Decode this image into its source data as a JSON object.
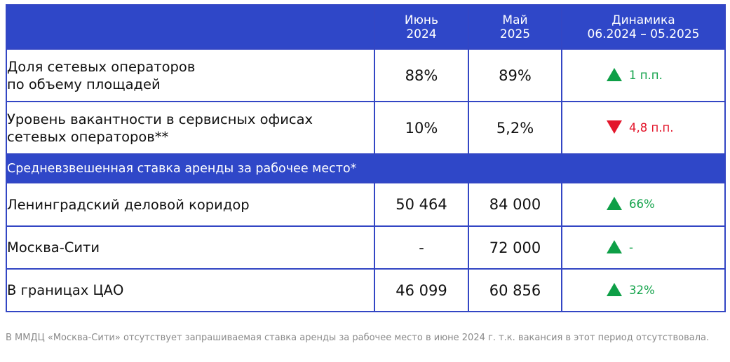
{
  "header": {
    "col1": "",
    "col2": {
      "line1": "Июнь",
      "line2": "2024"
    },
    "col3": {
      "line1": "Май",
      "line2": "2025"
    },
    "col4": {
      "line1": "Динамика",
      "line2": "06.2024 – 05.2025"
    }
  },
  "rows_top": [
    {
      "label_line1": "Доля сетевых операторов",
      "label_line2": "по объему площадей",
      "v2024": "88%",
      "v2025": "89%",
      "dyn": "1 п.п.",
      "dir": "up"
    },
    {
      "label_line1": "Уровень вакантности в сервисных офисах",
      "label_line2": "сетевых операторов**",
      "v2024": "10%",
      "v2025": "5,2%",
      "dyn": "4,8 п.п.",
      "dir": "down"
    }
  ],
  "section_title": "Средневзвешенная ставка аренды за рабочее место*",
  "rows_bottom": [
    {
      "label": "Ленинградский деловой коридор",
      "v2024": "50 464",
      "v2025": "84 000",
      "dyn": "66%",
      "dir": "up"
    },
    {
      "label": "Москва-Сити",
      "v2024": "-",
      "v2025": "72 000",
      "dyn": "-",
      "dir": "up"
    },
    {
      "label": "В границах ЦАО",
      "v2024": "46 099",
      "v2025": "60 856",
      "dyn": "32%",
      "dir": "up"
    }
  ],
  "colors": {
    "header_bg": "#2f47c8",
    "border": "#3346c4",
    "up": "#14a34b",
    "down": "#e3162b"
  },
  "icons": {
    "up": "triangle-up-icon",
    "down": "triangle-down-icon"
  },
  "footnote": "В ММДЦ «Москва-Сити» отсутствует запрашиваемая ставка аренды за рабочее место в июне 2024 г. т.к. вакансия в этот период отсутствовала."
}
